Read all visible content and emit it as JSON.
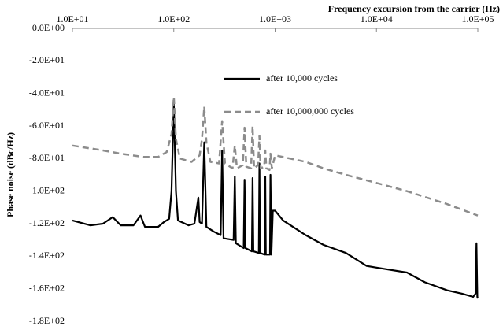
{
  "chart_data": {
    "type": "line",
    "title": "Frequency excursion from the carrier (Hz)",
    "y_label": "Phase noise (dBc/Hz)",
    "xscale": "log",
    "legend": "upper-center",
    "xlim": [
      10,
      100000
    ],
    "xticks": [
      {
        "value": 10,
        "label": "1.0E+01"
      },
      {
        "value": 100,
        "label": "1.0E+02"
      },
      {
        "value": 1000,
        "label": "1.0E+03"
      },
      {
        "value": 10000,
        "label": "1.0E+04"
      },
      {
        "value": 100000,
        "label": "1.0E+05"
      }
    ],
    "ylim": [
      -180,
      0
    ],
    "yticks": [
      {
        "value": 0,
        "label": "0.0E+00"
      },
      {
        "value": -20,
        "label": "-2.0E+01"
      },
      {
        "value": -40,
        "label": "-4.0E+01"
      },
      {
        "value": -60,
        "label": "-6.0E+01"
      },
      {
        "value": -80,
        "label": "-8.0E+01"
      },
      {
        "value": -100,
        "label": "-1.0E+02"
      },
      {
        "value": -120,
        "label": "-1.2E+02"
      },
      {
        "value": -140,
        "label": "-1.4E+02"
      },
      {
        "value": -160,
        "label": "-1.6E+02"
      },
      {
        "value": -180,
        "label": "-1.8E+02"
      }
    ],
    "series": [
      {
        "name": "after 10,000 cycles",
        "color": "#000000",
        "dash": "solid",
        "x": [
          10,
          15,
          20,
          25,
          30,
          40,
          47,
          52,
          70,
          80,
          90,
          95,
          100,
          105,
          110,
          140,
          160,
          175,
          180,
          190,
          200,
          210,
          250,
          290,
          300,
          310,
          390,
          400,
          410,
          490,
          500,
          510,
          590,
          600,
          610,
          690,
          700,
          710,
          790,
          800,
          810,
          890,
          900,
          920,
          950,
          1000,
          1200,
          1500,
          2000,
          3000,
          5000,
          8000,
          10000,
          20000,
          30000,
          50000,
          70000,
          90000,
          95000,
          97000,
          99000,
          100000
        ],
        "values": [
          -118,
          -121,
          -120,
          -116,
          -121,
          -121,
          -115,
          -122,
          -122,
          -119,
          -117,
          -100,
          -46,
          -100,
          -118,
          -121,
          -120,
          -104,
          -119,
          -120,
          -70,
          -122,
          -125,
          -127,
          -75,
          -129,
          -130,
          -91,
          -132,
          -135,
          -93,
          -135,
          -137,
          -92,
          -137,
          -138,
          -83,
          -138,
          -139,
          -91,
          -139,
          -139,
          -90,
          -139,
          -112,
          -112,
          -118,
          -122,
          -127,
          -133,
          -138,
          -146,
          -147,
          -150,
          -156,
          -161,
          -163,
          -165,
          -163,
          -132,
          -165,
          -166
        ]
      },
      {
        "name": "after 10,000,000 cycles",
        "color": "#8c8c8c",
        "dash": "dashed",
        "x": [
          10,
          20,
          30,
          50,
          70,
          85,
          95,
          100,
          105,
          115,
          150,
          180,
          190,
          200,
          210,
          230,
          280,
          300,
          320,
          380,
          400,
          420,
          480,
          500,
          520,
          580,
          600,
          620,
          680,
          700,
          720,
          780,
          800,
          820,
          880,
          900,
          930,
          1000,
          2000,
          3000,
          5000,
          10000,
          20000,
          50000,
          100000
        ],
        "values": [
          -72,
          -75,
          -77,
          -79,
          -79,
          -76,
          -65,
          -42,
          -68,
          -80,
          -82,
          -78,
          -68,
          -48,
          -70,
          -82,
          -83,
          -57,
          -83,
          -86,
          -72,
          -86,
          -84,
          -61,
          -85,
          -86,
          -60,
          -86,
          -84,
          -66,
          -86,
          -85,
          -75,
          -86,
          -87,
          -77,
          -86,
          -78,
          -82,
          -86,
          -90,
          -95,
          -100,
          -108,
          -115
        ]
      }
    ]
  }
}
